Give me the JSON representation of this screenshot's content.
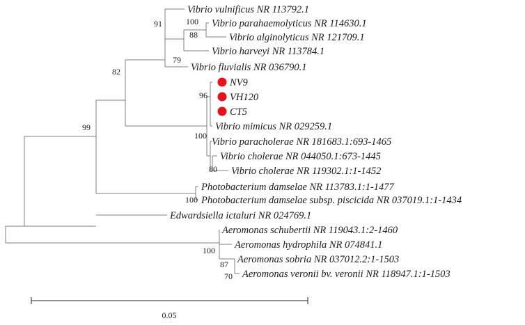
{
  "tree": {
    "leaves": [
      {
        "id": "vvul",
        "label": "Vibrio vulnificus NR 113792.1"
      },
      {
        "id": "vpara",
        "label": "Vibrio parahaemolyticus NR 114630.1"
      },
      {
        "id": "valg",
        "label": "Vibrio alginolyticus NR 121709.1"
      },
      {
        "id": "vhar",
        "label": "Vibrio harveyi NR 113784.1"
      },
      {
        "id": "vflu",
        "label": "Vibrio fluvialis NR 036790.1"
      },
      {
        "id": "nv9",
        "label": "NV9",
        "highlight": true
      },
      {
        "id": "vh120",
        "label": "VH120",
        "highlight": true
      },
      {
        "id": "ct5",
        "label": "CT5",
        "highlight": true
      },
      {
        "id": "vmim",
        "label": "Vibrio mimicus NR 029259.1"
      },
      {
        "id": "vpch",
        "label": "Vibrio paracholerae NR 181683.1:693-1465"
      },
      {
        "id": "vch1",
        "label": "Vibrio cholerae NR 044050.1:673-1445"
      },
      {
        "id": "vch2",
        "label": "Vibrio cholerae NR 119302.1:1-1452"
      },
      {
        "id": "pd1",
        "label": "Photobacterium damselae NR 113783.1:1-1477"
      },
      {
        "id": "pd2",
        "label": "Photobacterium damselae subsp. piscicida NR 037019.1:1-1434"
      },
      {
        "id": "edw",
        "label": "Edwardsiella ictaluri NR 024769.1"
      },
      {
        "id": "asch",
        "label": "Aeromonas schubertii NR 119043.1:2-1460"
      },
      {
        "id": "ahyd",
        "label": "Aeromonas hydrophila NR 074841.1"
      },
      {
        "id": "asob",
        "label": "Aeromonas sobria NR 037012.2:1-1503"
      },
      {
        "id": "aver",
        "label": "Aeromonas veronii bv. veronii NR 118947.1:1-1503"
      }
    ],
    "bootstrap": {
      "n91": "91",
      "n100a": "100",
      "n88": "88",
      "n79": "79",
      "n82": "82",
      "n96": "96",
      "n100b": "100",
      "n80": "80",
      "n99": "99",
      "n100c": "100",
      "n100d": "100",
      "n87": "87",
      "n70": "70"
    },
    "marker_color": "#e8101a",
    "scale_bar": {
      "label": "0.05"
    }
  }
}
